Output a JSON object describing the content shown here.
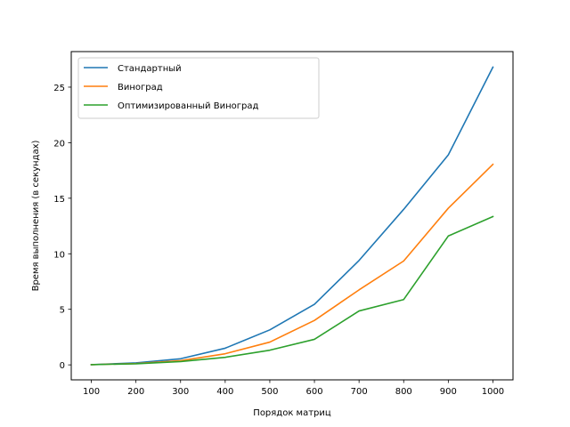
{
  "chart_data": {
    "type": "line",
    "title": "",
    "xlabel": "Порядок матриц",
    "ylabel": "Время выполнения (в секундах)",
    "x": [
      100,
      200,
      300,
      400,
      500,
      600,
      700,
      800,
      900,
      1000
    ],
    "xticks": [
      "100",
      "200",
      "300",
      "400",
      "500",
      "600",
      "700",
      "800",
      "900",
      "1000"
    ],
    "yticks": [
      "0",
      "5",
      "10",
      "15",
      "20",
      "25"
    ],
    "xlim": [
      55,
      1045
    ],
    "ylim": [
      -1.35,
      28.2
    ],
    "grid": false,
    "legend_position": "top-left",
    "series": [
      {
        "name": "Стандартный",
        "color": "#1f77b4",
        "values": [
          0.02,
          0.18,
          0.55,
          1.5,
          3.15,
          5.45,
          9.4,
          14.0,
          18.9,
          26.8
        ]
      },
      {
        "name": "Виноград",
        "color": "#ff7f0e",
        "values": [
          0.02,
          0.12,
          0.38,
          1.0,
          2.05,
          4.0,
          6.75,
          9.35,
          14.1,
          18.05
        ]
      },
      {
        "name": "Оптимизированный Виноград",
        "color": "#2ca02c",
        "values": [
          0.02,
          0.1,
          0.3,
          0.68,
          1.32,
          2.3,
          4.85,
          5.88,
          11.6,
          13.35
        ]
      }
    ]
  }
}
